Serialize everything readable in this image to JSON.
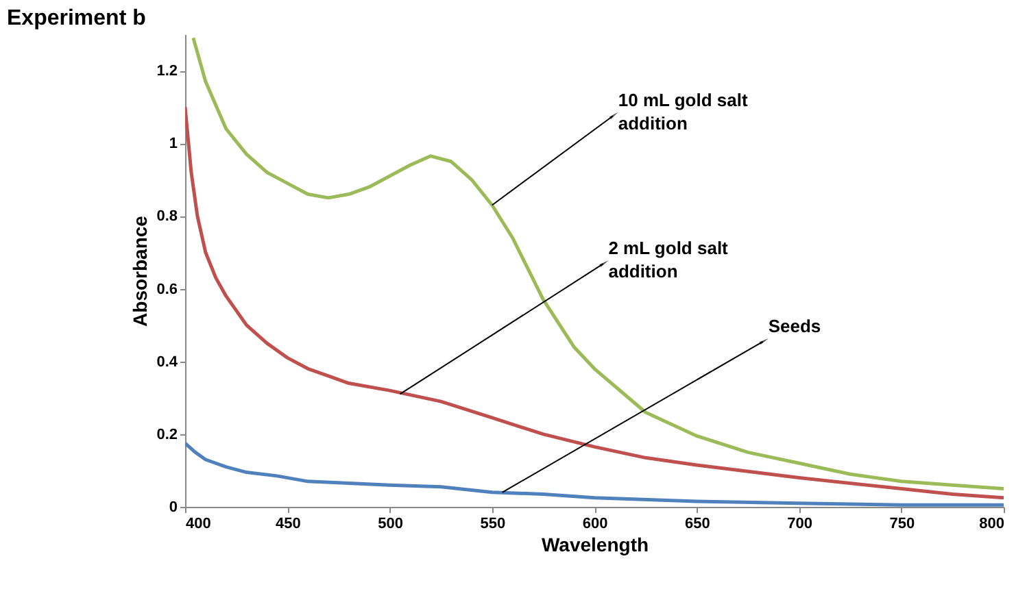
{
  "chart_data": {
    "type": "line",
    "title": "Experiment b",
    "xlabel": "Wavelength",
    "ylabel": "Absorbance",
    "xlim": [
      400,
      800
    ],
    "xticks": [
      400,
      450,
      500,
      550,
      600,
      650,
      700,
      750,
      800
    ],
    "ylim": [
      0,
      1.3
    ],
    "yticks": [
      0,
      0.2,
      0.4,
      0.6,
      0.8,
      1,
      1.2
    ],
    "grid": false,
    "legend": false,
    "marker": "none",
    "line_style": "solid",
    "series": [
      {
        "color": "#9bbb59",
        "x": [
          404,
          410,
          420,
          430,
          440,
          450,
          460,
          470,
          480,
          490,
          500,
          510,
          520,
          530,
          540,
          550,
          560,
          575,
          590,
          600,
          625,
          650,
          675,
          700,
          725,
          750,
          775,
          800
        ],
        "values": [
          1.29,
          1.17,
          1.04,
          0.97,
          0.92,
          0.89,
          0.86,
          0.85,
          0.86,
          0.88,
          0.91,
          0.94,
          0.965,
          0.95,
          0.9,
          0.83,
          0.74,
          0.57,
          0.44,
          0.38,
          0.26,
          0.195,
          0.15,
          0.12,
          0.09,
          0.07,
          0.06,
          0.05
        ]
      },
      {
        "color": "#c0504d",
        "x": [
          400,
          403,
          406,
          410,
          415,
          420,
          430,
          440,
          450,
          460,
          470,
          480,
          500,
          525,
          550,
          575,
          600,
          625,
          650,
          700,
          750,
          775,
          800
        ],
        "values": [
          1.1,
          0.92,
          0.8,
          0.7,
          0.63,
          0.58,
          0.5,
          0.45,
          0.41,
          0.38,
          0.36,
          0.34,
          0.32,
          0.29,
          0.245,
          0.2,
          0.165,
          0.135,
          0.115,
          0.08,
          0.05,
          0.035,
          0.025
        ]
      },
      {
        "color": "#4f81bd",
        "x": [
          400,
          405,
          410,
          420,
          430,
          445,
          460,
          480,
          500,
          525,
          550,
          575,
          600,
          650,
          700,
          750,
          800
        ],
        "values": [
          0.175,
          0.15,
          0.13,
          0.11,
          0.095,
          0.085,
          0.07,
          0.065,
          0.06,
          0.055,
          0.04,
          0.035,
          0.025,
          0.015,
          0.01,
          0.005,
          0.005
        ]
      }
    ],
    "annotations": [
      {
        "text": "10 mL gold salt\naddition",
        "x": 550,
        "y": 0.83
      },
      {
        "text": "2 mL gold salt\naddition",
        "x": 505,
        "y": 0.31
      },
      {
        "text": "Seeds",
        "x": 555,
        "y": 0.04
      }
    ]
  }
}
